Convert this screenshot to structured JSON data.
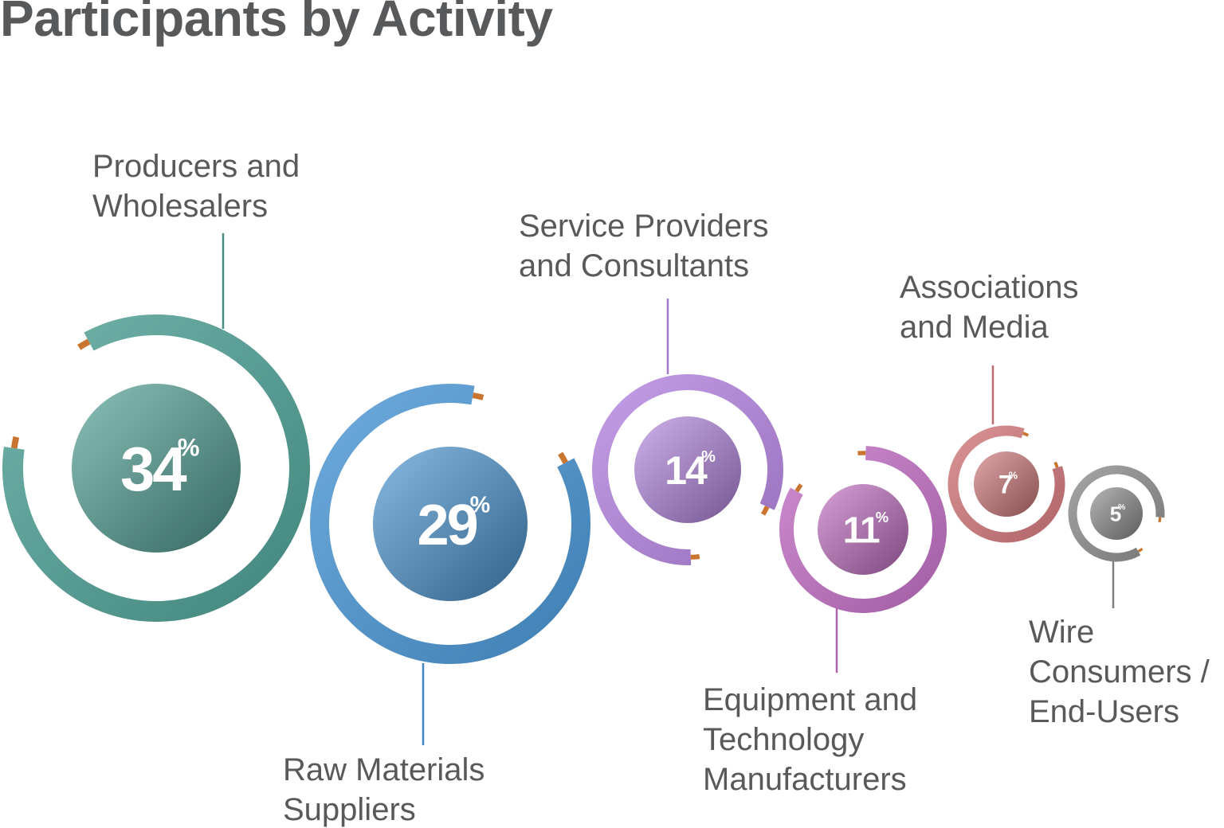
{
  "chart_data": {
    "type": "pie",
    "title": "Participants by Activity",
    "unit_symbol": "%",
    "series": [
      {
        "label_lines": [
          "Producers and",
          "Wholesalers"
        ],
        "value": 34,
        "color": "#4e9f94"
      },
      {
        "label_lines": [
          "Raw Materials",
          "Suppliers"
        ],
        "value": 29,
        "color": "#4a95d3"
      },
      {
        "label_lines": [
          "Service Providers",
          "and Consultants"
        ],
        "value": 14,
        "color": "#b485e0"
      },
      {
        "label_lines": [
          "Equipment and",
          "Technology",
          "Manufacturers"
        ],
        "value": 11,
        "color": "#c06fc2"
      },
      {
        "label_lines": [
          "Associations",
          "and Media"
        ],
        "value": 7,
        "color": "#d0787a"
      },
      {
        "label_lines": [
          "Wire",
          "Consumers /",
          "End-Users"
        ],
        "value": 5,
        "color": "#8d8d8d"
      }
    ]
  }
}
